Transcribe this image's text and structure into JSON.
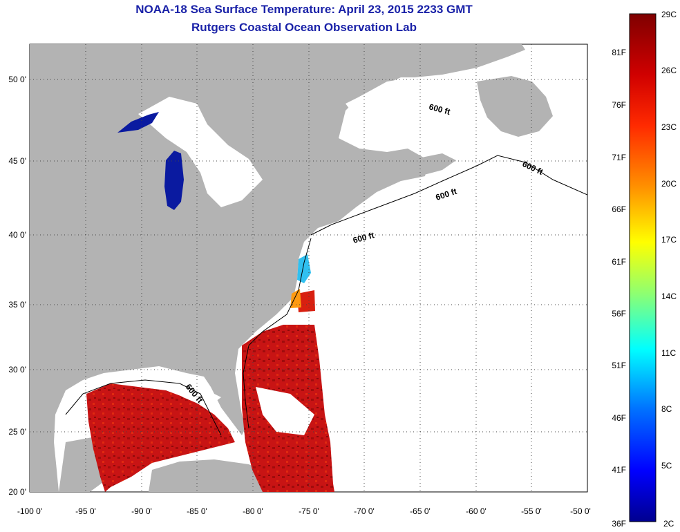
{
  "header": {
    "title": "NOAA-18 Sea Surface Temperature:  April 23, 2015 2233 GMT",
    "subtitle": "Rutgers Coastal Ocean Observation Lab"
  },
  "map": {
    "lon_labels": [
      "-100 0'",
      "-95 0'",
      "-90 0'",
      "-85 0'",
      "-80 0'",
      "-75 0'",
      "-70 0'",
      "-65 0'",
      "-60 0'",
      "-55 0'",
      "-50 0'"
    ],
    "lat_labels": [
      "50 0'",
      "45 0'",
      "40 0'",
      "35 0'",
      "30 0'",
      "25 0'",
      "20 0'"
    ],
    "contour_labels": [
      "600 ft",
      "600 ft",
      "600 ft",
      "600 ft",
      "600 ft"
    ],
    "colors": {
      "land": "#b3b3b3",
      "cloud": "#ffffff",
      "warm": "#c81414",
      "hot": "#8c0a0a",
      "lake": "#0a1aa0"
    }
  },
  "colorbar": {
    "celsius": [
      "29C",
      "26C",
      "23C",
      "20C",
      "17C",
      "14C",
      "11C",
      "8C",
      "5C",
      "2C"
    ],
    "fahrenheit": [
      "81F",
      "76F",
      "71F",
      "66F",
      "61F",
      "56F",
      "51F",
      "46F",
      "41F",
      "36F"
    ],
    "stops": [
      "#7f0000",
      "#ff0000",
      "#ff8000",
      "#ffff00",
      "#80ff80",
      "#00ffff",
      "#0080ff",
      "#0000ff",
      "#00008f"
    ]
  }
}
